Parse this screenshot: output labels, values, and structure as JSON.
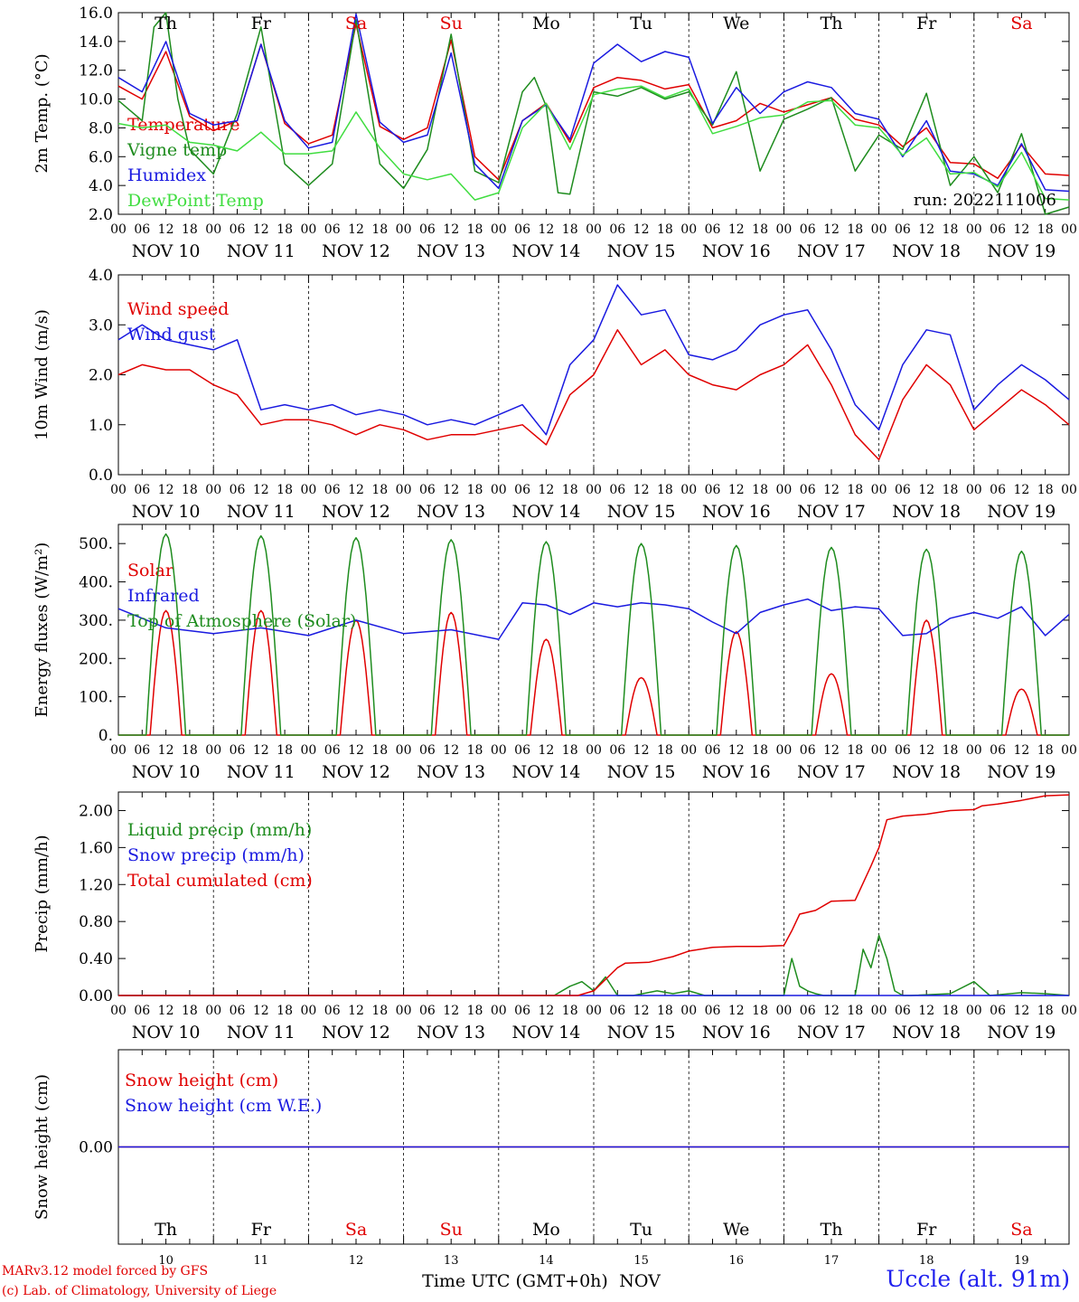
{
  "footer": {
    "credit_line1": "MARv3.12 model forced by GFS",
    "credit_line2": "(c) Lab. of Climatology, University of Liege",
    "xlabel": "Time UTC (GMT+0h)",
    "month": "NOV",
    "station": "Uccle (alt. 91m)"
  },
  "time_axis": {
    "hour_ticks": [
      "00",
      "06",
      "12",
      "18"
    ],
    "date_labels": [
      "NOV 10",
      "NOV 11",
      "NOV 12",
      "NOV 13",
      "NOV 14",
      "NOV 15",
      "NOV 16",
      "NOV 17",
      "NOV 18",
      "NOV 19"
    ],
    "day_names": [
      "Th",
      "Fr",
      "Sa",
      "Su",
      "Mo",
      "Tu",
      "We",
      "Th",
      "Fr",
      "Sa"
    ],
    "day_numbers": [
      "10",
      "11",
      "12",
      "13",
      "14",
      "15",
      "16",
      "17",
      "18",
      "19"
    ],
    "weekend_color": "#e00000",
    "weekday_color": "#000000",
    "weekend_days": [
      "Sa",
      "Su"
    ]
  },
  "chart_data": [
    {
      "type": "line",
      "ylabel": "2m Temp. (°C)",
      "ylim": [
        2,
        16
      ],
      "yticks": [
        "2.0",
        "4.0",
        "6.0",
        "8.0",
        "10.0",
        "12.0",
        "14.0",
        "16.0"
      ],
      "annotation": "run: 2022111006",
      "series": [
        {
          "name": "Temperature",
          "color": "#e00000",
          "x": [
            0,
            6,
            12,
            18,
            24,
            30,
            36,
            42,
            48,
            54,
            60,
            66,
            72,
            78,
            84,
            90,
            96,
            102,
            108,
            114,
            120,
            126,
            132,
            138,
            144,
            150,
            156,
            162,
            168,
            174,
            180,
            186,
            192,
            198,
            204,
            210,
            216,
            222,
            228,
            234,
            240
          ],
          "y": [
            10.9,
            10.0,
            13.3,
            8.8,
            7.8,
            8.5,
            13.8,
            8.3,
            6.9,
            7.5,
            15.2,
            8.1,
            7.2,
            8.0,
            14.1,
            6.0,
            4.4,
            8.5,
            9.7,
            7.0,
            10.8,
            11.5,
            11.3,
            10.7,
            11.0,
            8.0,
            8.5,
            9.7,
            9.1,
            9.6,
            10.1,
            8.6,
            8.2,
            6.7,
            8.0,
            5.6,
            5.5,
            4.5,
            6.8,
            4.8,
            4.7
          ]
        },
        {
          "name": "Vigne temp",
          "color": "#1e8c1e",
          "x": [
            0,
            6,
            9,
            12,
            15,
            18,
            24,
            30,
            36,
            42,
            48,
            54,
            60,
            66,
            72,
            78,
            84,
            90,
            96,
            102,
            105,
            108,
            111,
            114,
            120,
            126,
            132,
            138,
            144,
            150,
            156,
            162,
            168,
            174,
            180,
            186,
            192,
            198,
            204,
            210,
            216,
            222,
            228,
            234,
            240
          ],
          "y": [
            9.9,
            8.5,
            15.0,
            16.0,
            10.0,
            6.5,
            4.8,
            9.0,
            15.0,
            5.5,
            4.0,
            5.5,
            15.5,
            5.5,
            3.8,
            6.5,
            14.5,
            5.0,
            4.2,
            10.5,
            11.5,
            9.5,
            3.5,
            3.4,
            10.5,
            10.2,
            10.8,
            10.0,
            10.5,
            8.2,
            11.9,
            5.0,
            8.6,
            9.3,
            10.1,
            5.0,
            7.5,
            6.5,
            10.4,
            4.0,
            6.0,
            3.5,
            7.6,
            2.0,
            2.5
          ]
        },
        {
          "name": "Humidex",
          "color": "#1a1ae0",
          "x": [
            0,
            6,
            12,
            18,
            24,
            30,
            36,
            42,
            48,
            54,
            60,
            66,
            72,
            78,
            84,
            90,
            96,
            102,
            108,
            114,
            120,
            126,
            132,
            138,
            144,
            150,
            156,
            162,
            168,
            174,
            180,
            186,
            192,
            198,
            204,
            210,
            216,
            222,
            228,
            234,
            240
          ],
          "y": [
            11.5,
            10.5,
            14.0,
            9.0,
            8.2,
            8.5,
            13.8,
            8.5,
            6.6,
            7.0,
            15.9,
            8.4,
            7.0,
            7.5,
            13.2,
            5.5,
            3.8,
            8.5,
            9.6,
            7.2,
            12.5,
            13.8,
            12.6,
            13.3,
            12.9,
            8.3,
            10.8,
            9.0,
            10.5,
            11.2,
            10.8,
            9.0,
            8.6,
            6.0,
            8.5,
            5.0,
            4.8,
            4.0,
            6.9,
            3.7,
            3.6
          ]
        },
        {
          "name": "DewPoint Temp",
          "color": "#40dd40",
          "x": [
            0,
            6,
            12,
            18,
            24,
            30,
            36,
            42,
            48,
            54,
            60,
            66,
            72,
            78,
            84,
            90,
            96,
            102,
            108,
            114,
            120,
            126,
            132,
            138,
            144,
            150,
            156,
            162,
            168,
            174,
            180,
            186,
            192,
            198,
            204,
            210,
            216,
            222,
            228,
            234,
            240
          ],
          "y": [
            8.3,
            8.0,
            8.2,
            7.0,
            6.8,
            6.4,
            7.7,
            6.2,
            6.2,
            6.4,
            9.1,
            6.6,
            4.8,
            4.4,
            4.8,
            3.0,
            3.5,
            8.0,
            9.7,
            6.5,
            10.3,
            10.7,
            10.9,
            10.1,
            10.7,
            7.6,
            8.1,
            8.7,
            8.9,
            9.8,
            9.9,
            8.2,
            8.0,
            6.1,
            7.3,
            4.8,
            4.9,
            3.9,
            6.3,
            3.1,
            3.0
          ]
        }
      ]
    },
    {
      "type": "line",
      "ylabel": "10m Wind (m/s)",
      "ylim": [
        0,
        4
      ],
      "yticks": [
        "0.0",
        "1.0",
        "2.0",
        "3.0",
        "4.0"
      ],
      "series": [
        {
          "name": "Wind speed",
          "color": "#e00000",
          "x": [
            0,
            6,
            12,
            18,
            24,
            30,
            36,
            42,
            48,
            54,
            60,
            66,
            72,
            78,
            84,
            90,
            96,
            102,
            108,
            114,
            120,
            126,
            132,
            138,
            144,
            150,
            156,
            162,
            168,
            174,
            180,
            186,
            192,
            198,
            204,
            210,
            216,
            222,
            228,
            234,
            240
          ],
          "y": [
            2.0,
            2.2,
            2.1,
            2.1,
            1.8,
            1.6,
            1.0,
            1.1,
            1.1,
            1.0,
            0.8,
            1.0,
            0.9,
            0.7,
            0.8,
            0.8,
            0.9,
            1.0,
            0.6,
            1.6,
            2.0,
            2.9,
            2.2,
            2.5,
            2.0,
            1.8,
            1.7,
            2.0,
            2.2,
            2.6,
            1.8,
            0.8,
            0.3,
            1.5,
            2.2,
            1.8,
            0.9,
            1.3,
            1.7,
            1.4,
            1.0
          ]
        },
        {
          "name": "Wind gust",
          "color": "#1a1ae0",
          "x": [
            0,
            6,
            12,
            18,
            24,
            30,
            36,
            42,
            48,
            54,
            60,
            66,
            72,
            78,
            84,
            90,
            96,
            102,
            108,
            114,
            120,
            126,
            132,
            138,
            144,
            150,
            156,
            162,
            168,
            174,
            180,
            186,
            192,
            198,
            204,
            210,
            216,
            222,
            228,
            234,
            240
          ],
          "y": [
            2.7,
            3.0,
            2.7,
            2.6,
            2.5,
            2.7,
            1.3,
            1.4,
            1.3,
            1.4,
            1.2,
            1.3,
            1.2,
            1.0,
            1.1,
            1.0,
            1.2,
            1.4,
            0.8,
            2.2,
            2.7,
            3.8,
            3.2,
            3.3,
            2.4,
            2.3,
            2.5,
            3.0,
            3.2,
            3.3,
            2.5,
            1.4,
            0.9,
            2.2,
            2.9,
            2.8,
            1.3,
            1.8,
            2.2,
            1.9,
            1.5
          ]
        }
      ]
    },
    {
      "type": "line",
      "ylabel": "Energy fluxes (W/m²)",
      "ylim": [
        0,
        550
      ],
      "yticks": [
        "0.",
        "100.",
        "200.",
        "300.",
        "400.",
        "500."
      ],
      "series": [
        {
          "name": "Solar",
          "color": "#e00000",
          "day_peaks": [
            325,
            325,
            300,
            320,
            250,
            150,
            270,
            160,
            300,
            120
          ]
        },
        {
          "name": "Infrared",
          "color": "#1a1ae0",
          "x": [
            0,
            12,
            24,
            36,
            48,
            60,
            72,
            84,
            96,
            102,
            108,
            114,
            120,
            126,
            132,
            138,
            144,
            150,
            156,
            162,
            168,
            174,
            180,
            186,
            192,
            198,
            204,
            210,
            216,
            222,
            228,
            234,
            240
          ],
          "y": [
            330,
            280,
            265,
            280,
            260,
            300,
            265,
            275,
            250,
            345,
            340,
            315,
            345,
            335,
            345,
            340,
            330,
            295,
            265,
            320,
            340,
            355,
            325,
            335,
            330,
            260,
            265,
            305,
            320,
            305,
            335,
            260,
            315
          ]
        },
        {
          "name": "Top of Atmosphere (Solar)",
          "color": "#1e8c1e",
          "day_peaks": [
            525,
            520,
            515,
            510,
            505,
            500,
            495,
            490,
            485,
            480
          ]
        }
      ]
    },
    {
      "type": "line",
      "ylabel": "Precip (mm/h)",
      "ylim": [
        0,
        2.2
      ],
      "yticks": [
        "0.00",
        "0.40",
        "0.80",
        "1.20",
        "1.60",
        "2.00"
      ],
      "series": [
        {
          "name": "Liquid precip (mm/h)",
          "color": "#1e8c1e",
          "x": [
            0,
            110,
            114,
            117,
            120,
            123,
            126,
            130,
            136,
            140,
            144,
            148,
            168,
            170,
            172,
            174,
            176,
            178,
            186,
            188,
            190,
            192,
            194,
            196,
            198,
            200,
            210,
            216,
            220,
            228,
            234,
            240
          ],
          "y": [
            0,
            0,
            0.1,
            0.15,
            0.05,
            0.2,
            0.0,
            0.0,
            0.05,
            0.02,
            0.05,
            0.0,
            0.0,
            0.4,
            0.1,
            0.05,
            0.02,
            0.0,
            0.0,
            0.5,
            0.3,
            0.65,
            0.4,
            0.05,
            0.0,
            0.0,
            0.02,
            0.15,
            0.0,
            0.03,
            0.02,
            0.0
          ]
        },
        {
          "name": "Snow precip (mm/h)",
          "color": "#1a1ae0",
          "x": [
            0,
            240
          ],
          "y": [
            0,
            0
          ]
        },
        {
          "name": "Total cumulated (cm)",
          "color": "#e00000",
          "x": [
            0,
            116,
            120,
            126,
            128,
            134,
            140,
            144,
            150,
            156,
            162,
            168,
            170,
            172,
            176,
            180,
            186,
            190,
            192,
            194,
            198,
            204,
            210,
            216,
            218,
            222,
            228,
            234,
            240
          ],
          "y": [
            0,
            0,
            0.05,
            0.3,
            0.35,
            0.36,
            0.42,
            0.48,
            0.52,
            0.53,
            0.53,
            0.54,
            0.7,
            0.88,
            0.92,
            1.02,
            1.03,
            1.4,
            1.6,
            1.9,
            1.94,
            1.96,
            2.0,
            2.01,
            2.05,
            2.07,
            2.11,
            2.16,
            2.17
          ]
        }
      ]
    },
    {
      "type": "line",
      "ylabel": "Snow height (cm)",
      "yticks": [
        "0.00"
      ],
      "series": [
        {
          "name": "Snow height (cm)",
          "color": "#e00000",
          "x": [
            0,
            240
          ],
          "y": [
            0,
            0
          ]
        },
        {
          "name": "Snow height (cm W.E.)",
          "color": "#1a1ae0",
          "x": [
            0,
            240
          ],
          "y": [
            0,
            0
          ]
        }
      ]
    }
  ]
}
